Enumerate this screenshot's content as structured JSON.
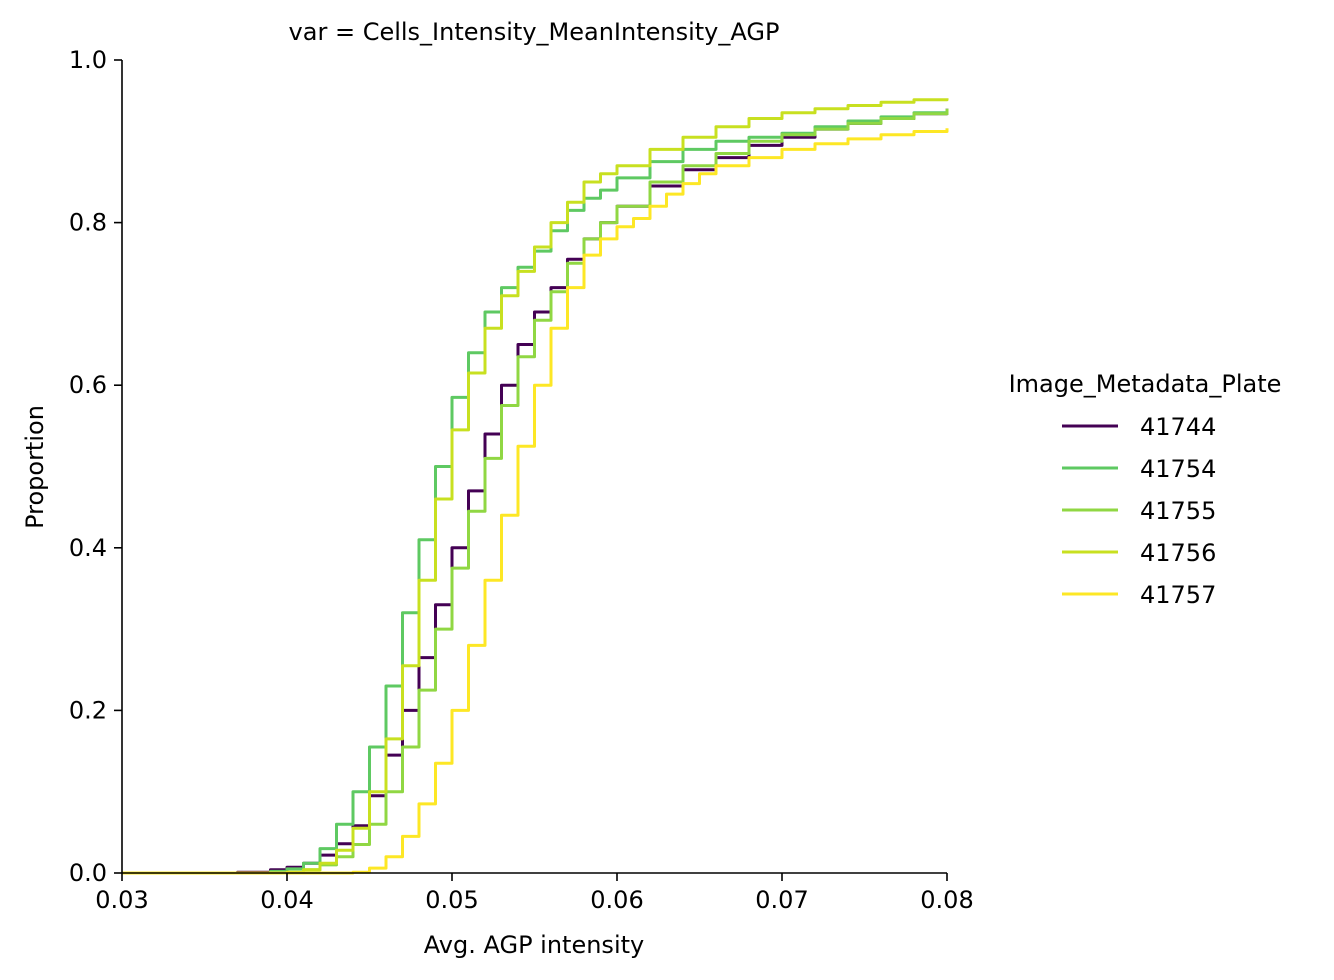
{
  "chart_data": {
    "type": "line",
    "title": "var = Cells_Intensity_MeanIntensity_AGP",
    "xlabel": "Avg. AGP intensity",
    "ylabel": "Proportion",
    "xlim": [
      0.03,
      0.08
    ],
    "ylim": [
      0.0,
      1.0
    ],
    "x_ticks": [
      "0.03",
      "0.04",
      "0.05",
      "0.06",
      "0.07",
      "0.08"
    ],
    "y_ticks": [
      "0.0",
      "0.2",
      "0.4",
      "0.6",
      "0.8",
      "1.0"
    ],
    "grid": false,
    "legend": {
      "title": "Image_Metadata_Plate",
      "placement": "right"
    },
    "series": [
      {
        "name": "41744",
        "color": "#440154",
        "x": [
          0.03,
          0.037,
          0.039,
          0.04,
          0.041,
          0.042,
          0.043,
          0.044,
          0.045,
          0.046,
          0.047,
          0.048,
          0.049,
          0.05,
          0.051,
          0.052,
          0.053,
          0.054,
          0.055,
          0.056,
          0.057,
          0.058,
          0.059,
          0.06,
          0.062,
          0.064,
          0.066,
          0.068,
          0.07,
          0.072,
          0.074,
          0.076,
          0.078,
          0.08
        ],
        "y": [
          0.0,
          0.001,
          0.004,
          0.007,
          0.012,
          0.022,
          0.036,
          0.058,
          0.095,
          0.145,
          0.2,
          0.265,
          0.33,
          0.4,
          0.47,
          0.54,
          0.6,
          0.65,
          0.69,
          0.72,
          0.755,
          0.78,
          0.8,
          0.82,
          0.845,
          0.865,
          0.88,
          0.895,
          0.905,
          0.915,
          0.922,
          0.928,
          0.934,
          0.94
        ]
      },
      {
        "name": "41754",
        "color": "#5ec962",
        "x": [
          0.03,
          0.039,
          0.04,
          0.041,
          0.042,
          0.043,
          0.044,
          0.045,
          0.046,
          0.047,
          0.048,
          0.049,
          0.05,
          0.051,
          0.052,
          0.053,
          0.054,
          0.055,
          0.056,
          0.057,
          0.058,
          0.059,
          0.06,
          0.062,
          0.064,
          0.066,
          0.068,
          0.07,
          0.072,
          0.074,
          0.076,
          0.078,
          0.08
        ],
        "y": [
          0.0,
          0.002,
          0.005,
          0.012,
          0.03,
          0.06,
          0.1,
          0.155,
          0.23,
          0.32,
          0.41,
          0.5,
          0.585,
          0.64,
          0.69,
          0.72,
          0.745,
          0.765,
          0.79,
          0.815,
          0.83,
          0.84,
          0.855,
          0.875,
          0.89,
          0.9,
          0.905,
          0.91,
          0.918,
          0.925,
          0.93,
          0.935,
          0.938
        ]
      },
      {
        "name": "41755",
        "color": "#90d743",
        "x": [
          0.03,
          0.04,
          0.041,
          0.042,
          0.043,
          0.044,
          0.045,
          0.046,
          0.047,
          0.048,
          0.049,
          0.05,
          0.051,
          0.052,
          0.053,
          0.054,
          0.055,
          0.056,
          0.057,
          0.058,
          0.059,
          0.06,
          0.062,
          0.064,
          0.066,
          0.068,
          0.07,
          0.072,
          0.074,
          0.076,
          0.078,
          0.08
        ],
        "y": [
          0.0,
          0.001,
          0.004,
          0.01,
          0.02,
          0.035,
          0.06,
          0.1,
          0.155,
          0.225,
          0.3,
          0.375,
          0.445,
          0.51,
          0.575,
          0.635,
          0.68,
          0.715,
          0.75,
          0.78,
          0.8,
          0.82,
          0.85,
          0.87,
          0.885,
          0.9,
          0.908,
          0.915,
          0.922,
          0.928,
          0.934,
          0.94
        ]
      },
      {
        "name": "41756",
        "color": "#c8e020",
        "x": [
          0.03,
          0.04,
          0.041,
          0.042,
          0.043,
          0.044,
          0.045,
          0.046,
          0.047,
          0.048,
          0.049,
          0.05,
          0.051,
          0.052,
          0.053,
          0.054,
          0.055,
          0.056,
          0.057,
          0.058,
          0.059,
          0.06,
          0.062,
          0.064,
          0.066,
          0.068,
          0.07,
          0.072,
          0.074,
          0.076,
          0.078,
          0.08
        ],
        "y": [
          0.0,
          0.001,
          0.004,
          0.012,
          0.028,
          0.055,
          0.1,
          0.165,
          0.255,
          0.36,
          0.46,
          0.545,
          0.615,
          0.67,
          0.71,
          0.74,
          0.77,
          0.8,
          0.825,
          0.85,
          0.86,
          0.87,
          0.89,
          0.905,
          0.918,
          0.928,
          0.935,
          0.94,
          0.944,
          0.948,
          0.951,
          0.953
        ]
      },
      {
        "name": "41757",
        "color": "#fde725",
        "x": [
          0.03,
          0.043,
          0.044,
          0.045,
          0.046,
          0.047,
          0.048,
          0.049,
          0.05,
          0.051,
          0.052,
          0.053,
          0.054,
          0.055,
          0.056,
          0.057,
          0.058,
          0.059,
          0.06,
          0.061,
          0.062,
          0.063,
          0.064,
          0.065,
          0.066,
          0.068,
          0.07,
          0.072,
          0.074,
          0.076,
          0.078,
          0.08
        ],
        "y": [
          0.0,
          0.0,
          0.001,
          0.006,
          0.02,
          0.045,
          0.085,
          0.135,
          0.2,
          0.28,
          0.36,
          0.44,
          0.525,
          0.6,
          0.67,
          0.72,
          0.76,
          0.78,
          0.795,
          0.805,
          0.82,
          0.835,
          0.848,
          0.86,
          0.87,
          0.88,
          0.89,
          0.897,
          0.903,
          0.908,
          0.912,
          0.916
        ]
      }
    ]
  }
}
